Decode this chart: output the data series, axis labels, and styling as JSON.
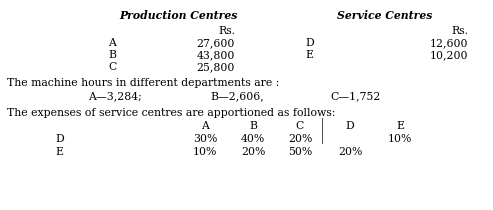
{
  "title_prod": "Production Centres",
  "title_serv": "Service Centres",
  "rs_label": "Rs.",
  "prod_centres": [
    "A",
    "B",
    "C"
  ],
  "prod_values": [
    "27,600",
    "43,800",
    "25,800"
  ],
  "serv_centres": [
    "D",
    "E"
  ],
  "serv_values": [
    "12,600",
    "10,200"
  ],
  "machine_hours_line": "The machine hours in different departments are :",
  "apportionment_line": "The expenses of service centres are apportioned as follows:",
  "app_headers": [
    "A",
    "B",
    "C",
    "D",
    "E"
  ],
  "app_D_label": "D",
  "app_E_label": "E",
  "app_D": [
    "30%",
    "40%",
    "20%",
    "",
    "10%"
  ],
  "app_E": [
    "10%",
    "20%",
    "50%",
    "20%",
    ""
  ],
  "mach_A": "A—3,284;",
  "mach_B": "B—2,606,",
  "mach_C": "C—1,752",
  "bg_color": "#ffffff"
}
